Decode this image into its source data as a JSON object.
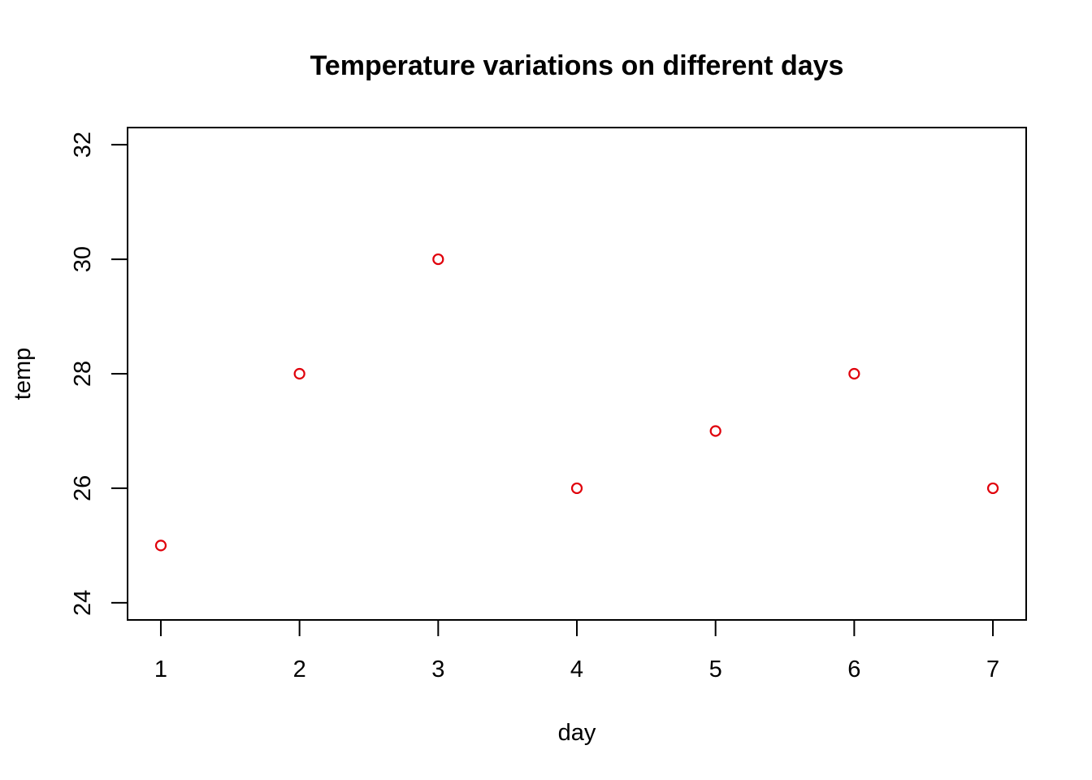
{
  "chart_data": {
    "type": "scatter",
    "title": "Temperature variations on different days",
    "xlabel": "day",
    "ylabel": "temp",
    "x": [
      1,
      2,
      3,
      4,
      5,
      6,
      7
    ],
    "y": [
      25,
      28,
      30,
      26,
      27,
      28,
      26
    ],
    "xlim": [
      0.76,
      7.24
    ],
    "ylim": [
      23.7,
      32.3
    ],
    "xticks": [
      1,
      2,
      3,
      4,
      5,
      6,
      7
    ],
    "yticks": [
      24,
      26,
      28,
      30,
      32
    ],
    "point_color": "#e0000b",
    "point_shape": "open-circle",
    "grid": false,
    "legend": "none"
  }
}
